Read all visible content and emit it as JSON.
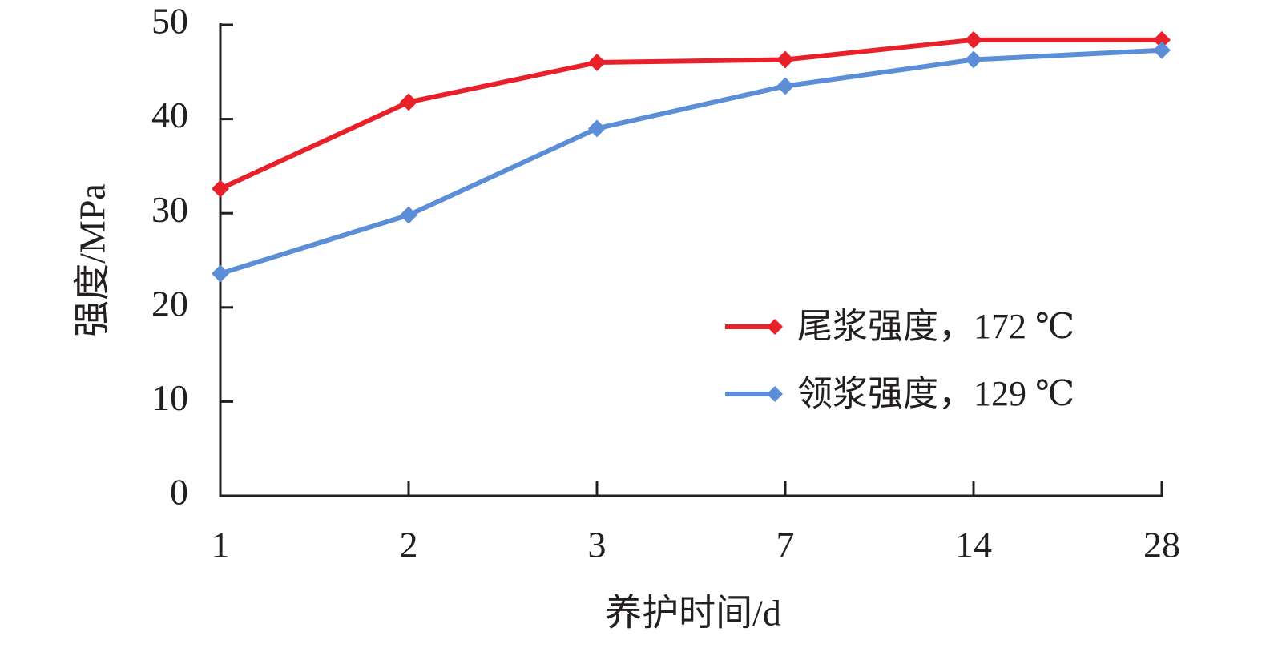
{
  "chart_data": {
    "type": "line",
    "x_label": "养护时间/d",
    "y_label": "强度/MPa",
    "categories": [
      "1",
      "2",
      "3",
      "7",
      "14",
      "28"
    ],
    "series": [
      {
        "name": "尾浆强度，172 ℃",
        "color": "#e8202a",
        "values": [
          32.6,
          41.8,
          46.0,
          46.3,
          48.4,
          48.4
        ]
      },
      {
        "name": "领浆强度，129 ℃",
        "color": "#5b8ed6",
        "values": [
          23.6,
          29.8,
          39.0,
          43.5,
          46.3,
          47.3
        ]
      }
    ],
    "ylim": [
      0,
      50
    ],
    "yticks": [
      0,
      10,
      20,
      30,
      40,
      50
    ],
    "grid": false,
    "legend": "right"
  }
}
